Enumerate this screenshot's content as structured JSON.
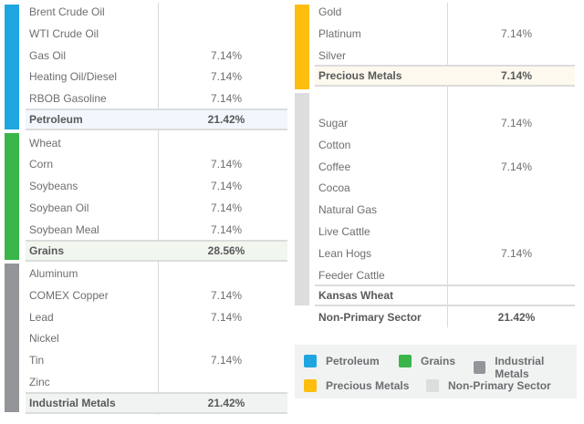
{
  "colors": {
    "petroleum": "#1fa6e0",
    "grains": "#39b54a",
    "industrial_metals": "#939598",
    "precious_metals": "#fdbe10",
    "non_primary": "#dcdddf"
  },
  "left": {
    "petroleum": {
      "items": [
        {
          "name": "Brent Crude Oil",
          "value": ""
        },
        {
          "name": "WTI Crude Oil",
          "value": ""
        },
        {
          "name": "Gas Oil",
          "value": "7.14%"
        },
        {
          "name": "Heating Oil/Diesel",
          "value": "7.14%"
        },
        {
          "name": "RBOB Gasoline",
          "value": "7.14%"
        }
      ],
      "total": {
        "name": "Petroleum",
        "value": "21.42%"
      }
    },
    "grains": {
      "items": [
        {
          "name": "Wheat",
          "value": ""
        },
        {
          "name": "Corn",
          "value": "7.14%"
        },
        {
          "name": "Soybeans",
          "value": "7.14%"
        },
        {
          "name": "Soybean Oil",
          "value": "7.14%"
        },
        {
          "name": "Soybean Meal",
          "value": "7.14%"
        }
      ],
      "total": {
        "name": "Grains",
        "value": "28.56%"
      }
    },
    "industrial_metals": {
      "items": [
        {
          "name": "Aluminum",
          "value": ""
        },
        {
          "name": "COMEX Copper",
          "value": "7.14%"
        },
        {
          "name": "Lead",
          "value": "7.14%"
        },
        {
          "name": "Nickel",
          "value": ""
        },
        {
          "name": "Tin",
          "value": "7.14%"
        },
        {
          "name": "Zinc",
          "value": ""
        }
      ],
      "total": {
        "name": "Industrial Metals",
        "value": "21.42%"
      }
    }
  },
  "right": {
    "precious_metals": {
      "items": [
        {
          "name": "Gold",
          "value": ""
        },
        {
          "name": "Platinum",
          "value": "7.14%"
        },
        {
          "name": "Silver",
          "value": ""
        }
      ],
      "total": {
        "name": "Precious Metals",
        "value": "7.14%"
      }
    },
    "non_primary": {
      "items": [
        {
          "name": "Sugar",
          "value": "7.14%"
        },
        {
          "name": "Cotton",
          "value": ""
        },
        {
          "name": "Coffee",
          "value": "7.14%"
        },
        {
          "name": "Cocoa",
          "value": ""
        },
        {
          "name": "Natural Gas",
          "value": ""
        },
        {
          "name": "Live Cattle",
          "value": ""
        },
        {
          "name": "Lean Hogs",
          "value": "7.14%"
        },
        {
          "name": "Feeder Cattle",
          "value": ""
        }
      ],
      "kansas": {
        "name": "Kansas Wheat",
        "value": ""
      },
      "total": {
        "name": "Non-Primary Sector",
        "value": "21.42%"
      }
    }
  },
  "legend": [
    {
      "label": "Petroleum"
    },
    {
      "label": "Grains"
    },
    {
      "label": "Industrial Metals"
    },
    {
      "label": "Precious Metals"
    },
    {
      "label": "Non-Primary Sector"
    }
  ]
}
